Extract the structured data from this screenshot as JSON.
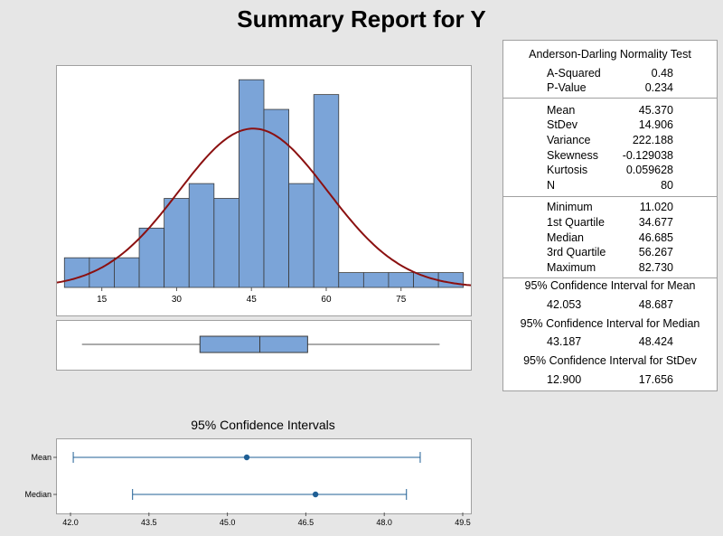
{
  "title": "Summary Report for Y",
  "chart_data": [
    {
      "type": "bar",
      "subtype": "histogram",
      "bin_width": 5,
      "bin_edges": [
        7.5,
        12.5,
        17.5,
        22.5,
        27.5,
        32.5,
        37.5,
        42.5,
        47.5,
        52.5,
        57.5,
        62.5,
        67.5,
        72.5,
        77.5,
        82.5,
        87.5
      ],
      "counts": [
        2,
        2,
        2,
        4,
        6,
        7,
        6,
        14,
        12,
        7,
        13,
        1,
        1,
        1,
        1,
        1
      ],
      "x_ticks": [
        15,
        30,
        45,
        60,
        75
      ],
      "xlim": [
        6,
        89
      ],
      "ylim": [
        0,
        14.5
      ],
      "normal_curve": {
        "mean": 45.37,
        "stdev": 14.906,
        "color": "#8b1010"
      },
      "bar_color": "#7ba4d8"
    },
    {
      "type": "boxplot",
      "min": 11.02,
      "q1": 34.677,
      "median": 46.685,
      "q3": 56.267,
      "max": 82.73,
      "box_color": "#7ba4d8"
    },
    {
      "type": "interval",
      "title": "95% Confidence Intervals",
      "series": [
        {
          "name": "Mean",
          "center": 45.37,
          "low": 42.053,
          "high": 48.687
        },
        {
          "name": "Median",
          "center": 46.685,
          "low": 43.187,
          "high": 48.424
        }
      ],
      "x_ticks": [
        "42.0",
        "43.5",
        "45.0",
        "46.5",
        "48.0",
        "49.5"
      ],
      "xlim": [
        42.0,
        49.5
      ],
      "color": "#1f5f95"
    }
  ],
  "stats": {
    "normality_title": "Anderson-Darling Normality Test",
    "a_squared_label": "A-Squared",
    "a_squared": "0.48",
    "p_value_label": "P-Value",
    "p_value": "0.234",
    "mean_label": "Mean",
    "mean": "45.370",
    "stdev_label": "StDev",
    "stdev": "14.906",
    "variance_label": "Variance",
    "variance": "222.188",
    "skewness_label": "Skewness",
    "skewness": "-0.129038",
    "kurtosis_label": "Kurtosis",
    "kurtosis": "0.059628",
    "n_label": "N",
    "n": "80",
    "minimum_label": "Minimum",
    "minimum": "11.020",
    "q1_label": "1st Quartile",
    "q1": "34.677",
    "median_label": "Median",
    "median": "46.685",
    "q3_label": "3rd Quartile",
    "q3": "56.267",
    "maximum_label": "Maximum",
    "maximum": "82.730",
    "ci_mean_title": "95% Confidence Interval for Mean",
    "ci_mean_low": "42.053",
    "ci_mean_high": "48.687",
    "ci_median_title": "95% Confidence Interval for Median",
    "ci_median_low": "43.187",
    "ci_median_high": "48.424",
    "ci_stdev_title": "95% Confidence Interval for StDev",
    "ci_stdev_low": "12.900",
    "ci_stdev_high": "17.656"
  }
}
